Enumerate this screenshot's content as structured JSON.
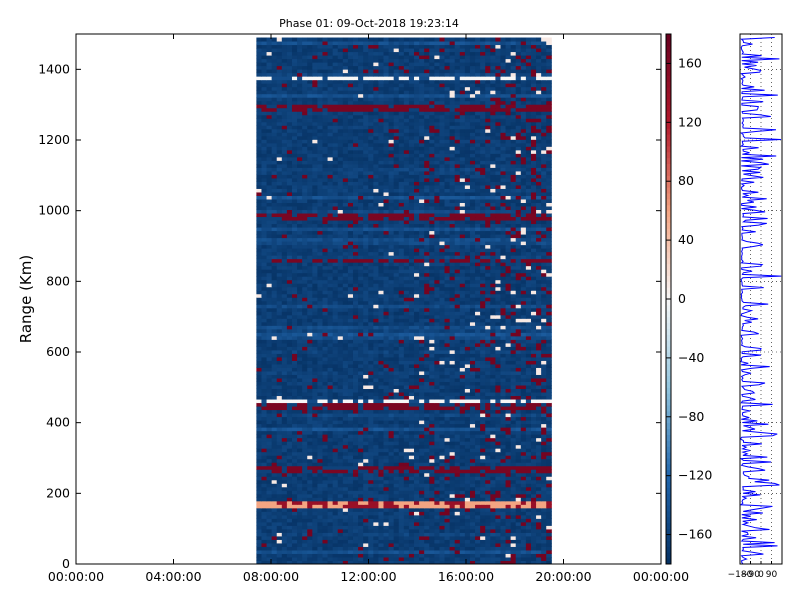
{
  "chart_data": [
    {
      "type": "heatmap",
      "title": "Phase 01: 09-Oct-2018 19:23:14",
      "xlabel": "",
      "ylabel": "Range (Km)",
      "x_tick_labels": [
        "00:00:00",
        "04:00:00",
        "08:00:00",
        "12:00:00",
        "16:00:00",
        "20:00:00",
        "00:00:00"
      ],
      "x_range_hours": [
        0,
        24
      ],
      "data_time_range_hours": [
        7.4,
        19.5
      ],
      "y_tick_labels": [
        "0",
        "200",
        "400",
        "600",
        "800",
        "1000",
        "1200",
        "1400"
      ],
      "ylim": [
        0,
        1500
      ],
      "data_range_limit_km": 1490,
      "colorbar": {
        "ticks": [
          "160",
          "120",
          "80",
          "40",
          "0",
          "−40",
          "−80",
          "−120",
          "−160"
        ],
        "range": [
          -180,
          180
        ],
        "colormap": "RdBu_r",
        "colors": {
          "negative": "#0d3b6e",
          "zero": "#ffffff",
          "positive": "#8b0a1a"
        }
      },
      "bright_range_bands_km": [
        {
          "range": 1370,
          "color": "#ffffff"
        },
        {
          "range": 1290,
          "color": "#8b0a1a"
        },
        {
          "range": 978,
          "color": "#8b0a1a"
        },
        {
          "range": 855,
          "color": "#8b0a1a"
        },
        {
          "range": 455,
          "color": "#ffffff"
        },
        {
          "range": 440,
          "color": "#8b0a1a"
        },
        {
          "range": 265,
          "color": "#8b0a1a"
        },
        {
          "range": 160,
          "color": "#f4c6b0"
        }
      ],
      "grid": false
    },
    {
      "type": "line",
      "title": "",
      "xlabel": "",
      "ylabel": "",
      "x_tick_labels": [
        "−180",
        "−90",
        "0",
        "90"
      ],
      "xlim": [
        -180,
        180
      ],
      "ylim": [
        0,
        1500
      ],
      "series_color": "#0000ff",
      "grid": true
    }
  ]
}
